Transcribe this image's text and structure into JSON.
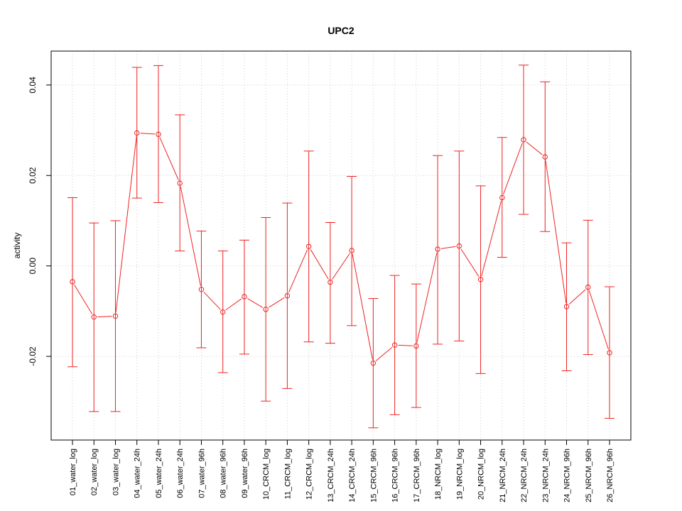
{
  "chart_data": {
    "type": "line",
    "title": "UPC2",
    "xlabel": "",
    "ylabel": "activity",
    "ylim": [
      -0.0385,
      0.0475
    ],
    "y_ticks": [
      -0.02,
      0.0,
      0.02,
      0.04
    ],
    "y_tick_labels": [
      "-0.02",
      "0.00",
      "0.02",
      "0.04"
    ],
    "grid": true,
    "colors": {
      "series": "#ee2222",
      "grid": "#cccccc",
      "axis": "#000000"
    },
    "categories": [
      "01_water_log",
      "02_water_log",
      "03_water_log",
      "04_water_24h",
      "05_water_24h",
      "06_water_24h",
      "07_water_96h",
      "08_water_96h",
      "09_water_96h",
      "10_CRCM_log",
      "11_CRCM_log",
      "12_CRCM_log",
      "13_CRCM_24h",
      "14_CRCM_24h",
      "15_CRCM_96h",
      "16_CRCM_96h",
      "17_CRCM_96h",
      "18_NRCM_log",
      "19_NRCM_log",
      "20_NRCM_log",
      "21_NRCM_24h",
      "22_NRCM_24h",
      "23_NRCM_24h",
      "24_NRCM_96h",
      "25_NRCM_96h",
      "26_NRCM_96h"
    ],
    "series": [
      {
        "name": "activity",
        "values": [
          -0.0035,
          -0.0113,
          -0.0111,
          0.0294,
          0.0291,
          0.0183,
          -0.0052,
          -0.0102,
          -0.0068,
          -0.0096,
          -0.0066,
          0.0043,
          -0.0036,
          0.0034,
          -0.0215,
          -0.0175,
          -0.0177,
          0.0037,
          0.0044,
          -0.003,
          0.0151,
          0.0279,
          0.0241,
          -0.009,
          -0.0047,
          -0.0192
        ],
        "upper": [
          0.0151,
          0.0095,
          0.01,
          0.0439,
          0.0443,
          0.0334,
          0.0077,
          0.0033,
          0.0057,
          0.0107,
          0.0139,
          0.0254,
          0.0096,
          0.0198,
          -0.0072,
          -0.0021,
          -0.004,
          0.0244,
          0.0254,
          0.0177,
          0.0284,
          0.0444,
          0.0407,
          0.0051,
          0.0101,
          -0.0046
        ],
        "lower": [
          -0.0223,
          -0.0322,
          -0.0322,
          0.015,
          0.014,
          0.0033,
          -0.0181,
          -0.0236,
          -0.0195,
          -0.0299,
          -0.0271,
          -0.0168,
          -0.0171,
          -0.0132,
          -0.0358,
          -0.0329,
          -0.0313,
          -0.0173,
          -0.0166,
          -0.0238,
          0.0019,
          0.0114,
          0.0076,
          -0.0232,
          -0.0196,
          -0.0337
        ]
      }
    ]
  }
}
